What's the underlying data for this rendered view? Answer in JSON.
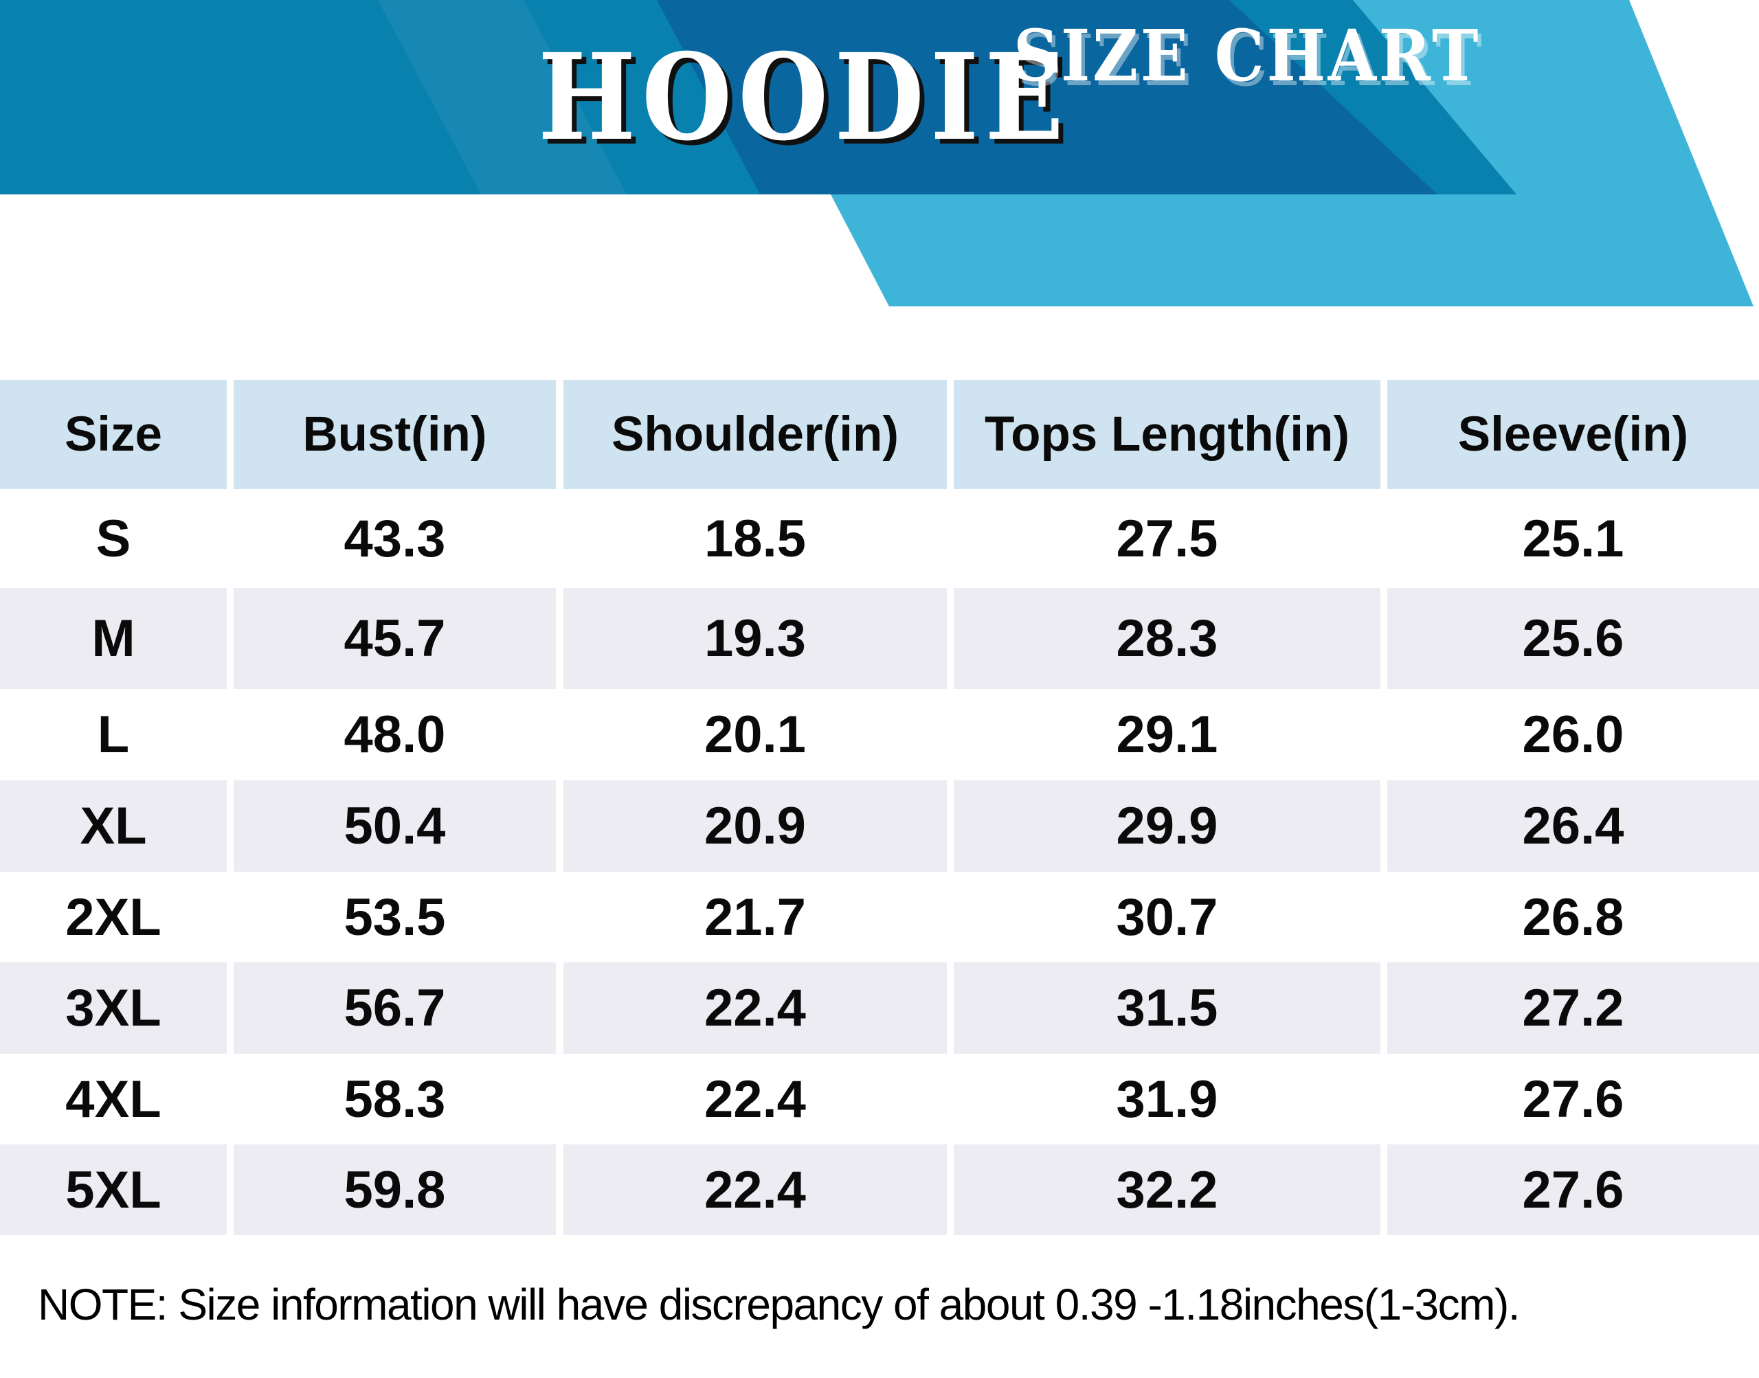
{
  "banner": {
    "title": "HOODIE",
    "subtitle": "SIZE CHART"
  },
  "table": {
    "headers": [
      "Size",
      "Bust(in)",
      "Shoulder(in)",
      "Tops Length(in)",
      "Sleeve(in)"
    ],
    "rows": [
      [
        "S",
        "43.3",
        "18.5",
        "27.5",
        "25.1"
      ],
      [
        "M",
        "45.7",
        "19.3",
        "28.3",
        "25.6"
      ],
      [
        "L",
        "48.0",
        "20.1",
        "29.1",
        "26.0"
      ],
      [
        "XL",
        "50.4",
        "20.9",
        "29.9",
        "26.4"
      ],
      [
        "2XL",
        "53.5",
        "21.7",
        "30.7",
        "26.8"
      ],
      [
        "3XL",
        "56.7",
        "22.4",
        "31.5",
        "27.2"
      ],
      [
        "4XL",
        "58.3",
        "22.4",
        "31.9",
        "27.6"
      ],
      [
        "5XL",
        "59.8",
        "22.4",
        "32.2",
        "27.6"
      ]
    ]
  },
  "note": "NOTE: Size information will have discrepancy of about 0.39 -1.18inches(1-3cm).",
  "colors": {
    "banner_blue": "#0981af",
    "banner_dark": "#09669e",
    "ribbon_cyan": "#3eb5d8",
    "header_cell": "#cfe4f0",
    "row_alt": "#edecf2",
    "text": "#0a0a0a",
    "title_shadow": "#101010"
  }
}
